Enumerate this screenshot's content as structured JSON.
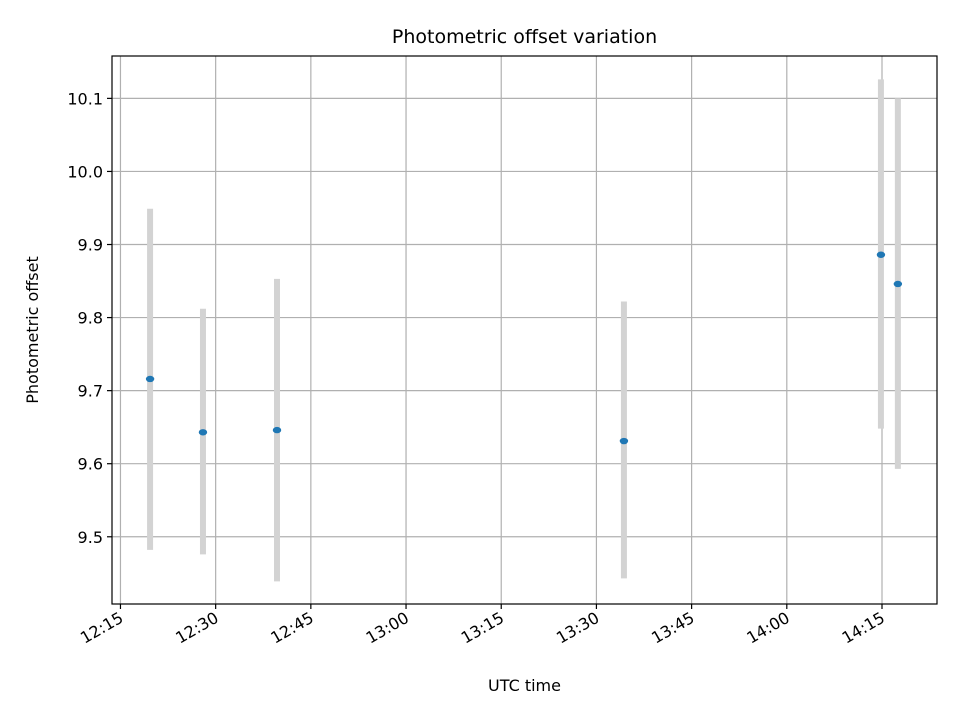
{
  "chart_data": {
    "type": "scatter",
    "title": "Photometric offset variation",
    "xlabel": "UTC time",
    "ylabel": "Photometric offset",
    "x_axis_kind": "time",
    "xlim": [
      "12:13:40",
      "14:23:40"
    ],
    "ylim": [
      9.408,
      10.158
    ],
    "x_ticks": [
      "12:15",
      "12:30",
      "12:45",
      "13:00",
      "13:15",
      "13:30",
      "13:45",
      "14:00",
      "14:15"
    ],
    "y_ticks": [
      9.5,
      9.6,
      9.7,
      9.8,
      9.9,
      10.0,
      10.1
    ],
    "y_tick_labels": [
      "9.5",
      "9.6",
      "9.7",
      "9.8",
      "9.9",
      "10.0",
      "10.1"
    ],
    "grid": true,
    "colors": {
      "points": "#1f77b4",
      "errorbars": "#d3d3d3",
      "grid": "#b0b0b0"
    },
    "series": [
      {
        "x": [
          "12:19:40",
          "12:28:00",
          "12:39:40",
          "13:34:20",
          "14:14:50",
          "14:17:30"
        ],
        "y": [
          9.716,
          9.643,
          9.646,
          9.631,
          9.886,
          9.846
        ],
        "yerr_low": [
          9.482,
          9.476,
          9.439,
          9.443,
          9.648,
          9.593
        ],
        "yerr_high": [
          9.949,
          9.812,
          9.853,
          9.822,
          10.126,
          10.1
        ]
      }
    ]
  }
}
